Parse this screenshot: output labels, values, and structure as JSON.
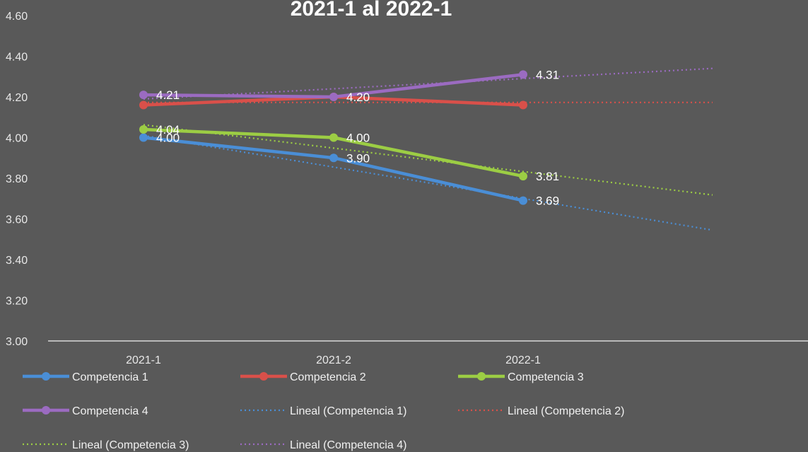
{
  "chart_data": {
    "type": "line",
    "title": "2021-1 al 2022-1",
    "xlabel": "",
    "ylabel": "",
    "categories": [
      "2021-1",
      "2021-2",
      "2022-1"
    ],
    "ylim": [
      3.0,
      4.6
    ],
    "yticks": [
      "3.00",
      "3.20",
      "3.40",
      "3.60",
      "3.80",
      "4.00",
      "4.20",
      "4.40",
      "4.60"
    ],
    "grid": false,
    "legend_position": "bottom",
    "series": [
      {
        "name": "Competencia 1",
        "color": "#4a8ed6",
        "values": [
          4.0,
          3.9,
          3.69
        ],
        "labels": [
          "4.00",
          "3.90",
          "3.69"
        ]
      },
      {
        "name": "Competencia 2",
        "color": "#d9504a",
        "values": [
          4.16,
          4.2,
          4.16
        ],
        "labels": [
          "",
          "4.20",
          ""
        ]
      },
      {
        "name": "Competencia 3",
        "color": "#9ccd44",
        "values": [
          4.04,
          4.0,
          3.81
        ],
        "labels": [
          "4.04",
          "4.00",
          "3.81"
        ]
      },
      {
        "name": "Competencia 4",
        "color": "#9b6bc1",
        "values": [
          4.21,
          4.2,
          4.31
        ],
        "labels": [
          "4.21",
          "",
          "4.31"
        ]
      }
    ],
    "trendlines": [
      {
        "name": "Lineal (Competencia 1)",
        "color": "#4a8ed6",
        "values": [
          4.01,
          3.855,
          3.7,
          3.545
        ]
      },
      {
        "name": "Lineal (Competencia 2)",
        "color": "#d9504a",
        "values": [
          4.173,
          4.173,
          4.173,
          4.173
        ]
      },
      {
        "name": "Lineal (Competencia 3)",
        "color": "#9ccd44",
        "values": [
          4.063,
          3.948,
          3.833,
          3.718
        ]
      },
      {
        "name": "Lineal (Competencia 4)",
        "color": "#9b6bc1",
        "values": [
          4.19,
          4.24,
          4.29,
          4.34
        ]
      }
    ]
  }
}
